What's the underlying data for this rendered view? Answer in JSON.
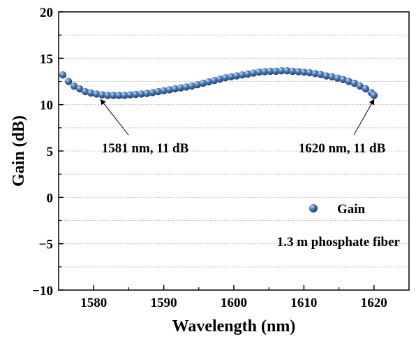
{
  "chart_data": {
    "type": "scatter",
    "xlabel": "Wavelength (nm)",
    "ylabel": "Gain (dB)",
    "xlim": [
      1575,
      1625
    ],
    "ylim": [
      -10,
      20
    ],
    "xticks": [
      1580,
      1590,
      1600,
      1610,
      1620
    ],
    "yticks": [
      -10,
      -5,
      0,
      5,
      10,
      15,
      20
    ],
    "grid": "horizontal-dotted",
    "legend_position": "bottom-right",
    "colors": {
      "marker": "#3f6fa8",
      "marker_light": "#9fc0e6",
      "marker_dark": "#1f3f6e",
      "grid": "#bfbfbf"
    },
    "series": [
      {
        "name": "Gain",
        "x": [
          1575.6,
          1576.4,
          1577.2,
          1578.0,
          1578.8,
          1579.6,
          1580.4,
          1581.2,
          1582.0,
          1582.8,
          1583.6,
          1584.4,
          1585.2,
          1586.0,
          1586.8,
          1587.6,
          1588.4,
          1589.2,
          1590.0,
          1590.8,
          1591.6,
          1592.4,
          1593.2,
          1594.0,
          1594.8,
          1595.6,
          1596.4,
          1597.2,
          1598.0,
          1598.8,
          1599.6,
          1600.4,
          1601.2,
          1602.0,
          1602.8,
          1603.6,
          1604.4,
          1605.2,
          1606.0,
          1606.8,
          1607.6,
          1608.4,
          1609.2,
          1610.0,
          1610.8,
          1611.6,
          1612.4,
          1613.2,
          1614.0,
          1614.8,
          1615.6,
          1616.4,
          1617.2,
          1618.0,
          1618.8,
          1619.6,
          1620.0
        ],
        "y": [
          13.2,
          12.5,
          12.0,
          11.7,
          11.4,
          11.25,
          11.15,
          11.05,
          11.0,
          11.0,
          11.0,
          11.0,
          11.05,
          11.1,
          11.15,
          11.2,
          11.3,
          11.4,
          11.5,
          11.6,
          11.7,
          11.8,
          11.9,
          12.0,
          12.15,
          12.3,
          12.45,
          12.6,
          12.75,
          12.9,
          13.0,
          13.1,
          13.2,
          13.3,
          13.4,
          13.5,
          13.55,
          13.6,
          13.6,
          13.65,
          13.65,
          13.6,
          13.55,
          13.5,
          13.45,
          13.35,
          13.25,
          13.1,
          13.0,
          12.85,
          12.7,
          12.5,
          12.3,
          12.0,
          11.7,
          11.3,
          11.0
        ]
      }
    ],
    "annotations": [
      {
        "text": "1581 nm, 11 dB",
        "x": 1581,
        "y": 11
      },
      {
        "text": "1620 nm, 11 dB",
        "x": 1620,
        "y": 11
      }
    ],
    "legend_note": "1.3 m phosphate fiber"
  }
}
